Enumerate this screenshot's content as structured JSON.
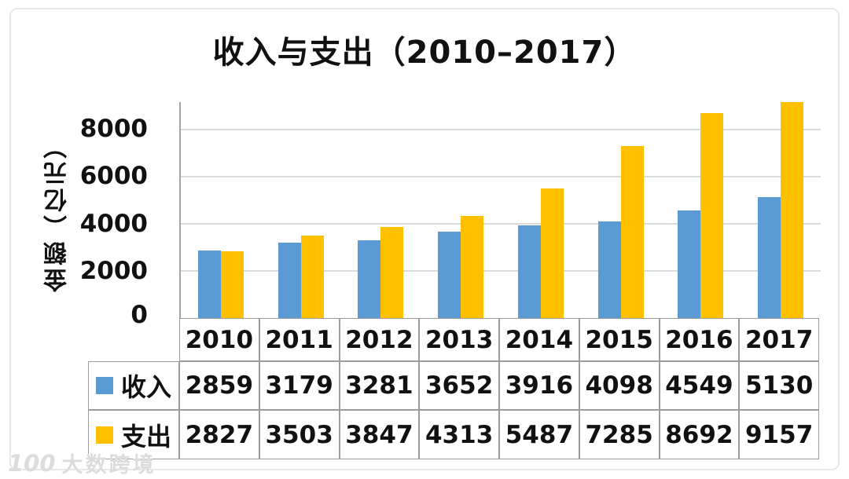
{
  "watermark": {
    "logo": "100",
    "text": "大数跨境"
  },
  "chart_data": {
    "type": "bar",
    "title": "收入与支出（2010–2017）",
    "ylabel": "金额（亿元）",
    "unit": "亿元",
    "categories": [
      "2010",
      "2011",
      "2012",
      "2013",
      "2014",
      "2015",
      "2016",
      "2017"
    ],
    "series": [
      {
        "name": "收入",
        "color": "#5B9BD5",
        "values": [
          2859,
          3179,
          3281,
          3652,
          3916,
          4098,
          4549,
          5130
        ]
      },
      {
        "name": "支出",
        "color": "#FFC000",
        "values": [
          2827,
          3503,
          3847,
          4313,
          5487,
          7285,
          8692,
          9157
        ]
      }
    ],
    "yticks": [
      0,
      2000,
      4000,
      6000,
      8000
    ],
    "ylim": [
      0,
      9150
    ],
    "grid": "horizontal-major",
    "legend_position": "left-of-table-rows"
  }
}
